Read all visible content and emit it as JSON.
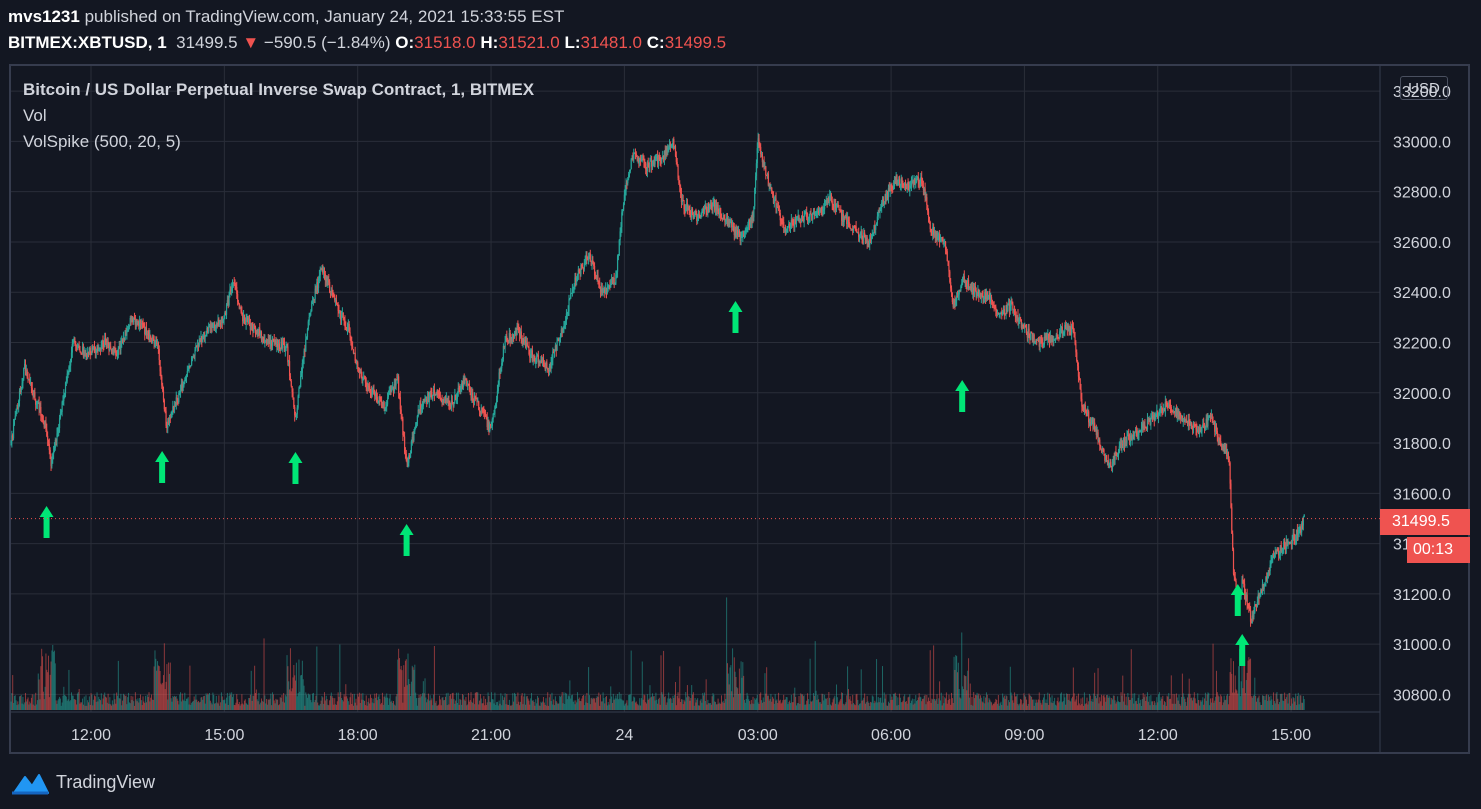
{
  "header": {
    "author": "mvs1231",
    "published_text": "published on TradingView.com, January 24, 2021 15:33:55 EST",
    "symbol": "BITMEX:XBTUSD, 1",
    "last": "31499.5",
    "change": "−590.5 (−1.84%)",
    "open_label": "O:",
    "open": "31518.0",
    "high_label": "H:",
    "high": "31521.0",
    "low_label": "L:",
    "low": "31481.0",
    "close_label": "C:",
    "close": "31499.5"
  },
  "legend": {
    "title": "Bitcoin / US Dollar Perpetual Inverse Swap Contract, 1, BITMEX",
    "vol": "Vol",
    "volspike": "VolSpike (500, 20, 5)"
  },
  "currency": "USD",
  "price_badge": "31499.5",
  "timer_badge": "00:13",
  "brand": "TradingView",
  "colors": {
    "background": "#131722",
    "up": "#26a69a",
    "down": "#ef5350",
    "arrow": "#00e676",
    "grid": "#2a2e39"
  },
  "chart_data": {
    "type": "candlestick",
    "y_ticks": [
      30800,
      31000,
      31200,
      31400,
      31600,
      31800,
      32000,
      32200,
      32400,
      32600,
      32800,
      33000,
      33200
    ],
    "y_tick_labels": [
      "30800.0",
      "31000.0",
      "31200.0",
      "31400.0",
      "31600.0",
      "31800.0",
      "32000.0",
      "32200.0",
      "32400.0",
      "32600.0",
      "32800.0",
      "33000.0",
      "33200.0"
    ],
    "x_tick_labels": [
      "12:00",
      "15:00",
      "18:00",
      "21:00",
      "24",
      "03:00",
      "06:00",
      "09:00",
      "12:00",
      "15:00"
    ],
    "x_tick_hours": [
      12,
      15,
      18,
      21,
      24,
      27,
      30,
      33,
      36,
      39
    ],
    "x_range_hours": [
      10.2,
      41.0
    ],
    "ylim": [
      30730,
      33300
    ],
    "last_price": 31499.5,
    "grid": true,
    "close_path": [
      [
        10.2,
        31800
      ],
      [
        10.5,
        32100
      ],
      [
        10.8,
        31950
      ],
      [
        11.0,
        31850
      ],
      [
        11.1,
        31720
      ],
      [
        11.3,
        31900
      ],
      [
        11.6,
        32200
      ],
      [
        11.9,
        32150
      ],
      [
        12.3,
        32200
      ],
      [
        12.6,
        32150
      ],
      [
        12.9,
        32300
      ],
      [
        13.2,
        32250
      ],
      [
        13.5,
        32180
      ],
      [
        13.7,
        31870
      ],
      [
        14.0,
        32000
      ],
      [
        14.3,
        32150
      ],
      [
        14.6,
        32250
      ],
      [
        15.0,
        32300
      ],
      [
        15.2,
        32450
      ],
      [
        15.4,
        32300
      ],
      [
        15.7,
        32250
      ],
      [
        16.0,
        32200
      ],
      [
        16.4,
        32180
      ],
      [
        16.6,
        31900
      ],
      [
        16.9,
        32300
      ],
      [
        17.2,
        32500
      ],
      [
        17.5,
        32350
      ],
      [
        17.8,
        32250
      ],
      [
        18.0,
        32100
      ],
      [
        18.3,
        32000
      ],
      [
        18.6,
        31950
      ],
      [
        18.9,
        32050
      ],
      [
        19.1,
        31700
      ],
      [
        19.4,
        31950
      ],
      [
        19.7,
        32000
      ],
      [
        20.1,
        31950
      ],
      [
        20.4,
        32050
      ],
      [
        20.7,
        31950
      ],
      [
        21.0,
        31850
      ],
      [
        21.3,
        32200
      ],
      [
        21.6,
        32250
      ],
      [
        21.9,
        32150
      ],
      [
        22.3,
        32100
      ],
      [
        22.6,
        32250
      ],
      [
        22.9,
        32450
      ],
      [
        23.2,
        32550
      ],
      [
        23.5,
        32400
      ],
      [
        23.8,
        32450
      ],
      [
        24.0,
        32800
      ],
      [
        24.2,
        32950
      ],
      [
        24.5,
        32900
      ],
      [
        24.9,
        32950
      ],
      [
        25.1,
        33000
      ],
      [
        25.3,
        32750
      ],
      [
        25.6,
        32700
      ],
      [
        26.0,
        32750
      ],
      [
        26.3,
        32680
      ],
      [
        26.6,
        32620
      ],
      [
        26.9,
        32700
      ],
      [
        27.0,
        33000
      ],
      [
        27.3,
        32800
      ],
      [
        27.6,
        32650
      ],
      [
        28.0,
        32700
      ],
      [
        28.3,
        32700
      ],
      [
        28.6,
        32780
      ],
      [
        28.9,
        32700
      ],
      [
        29.2,
        32650
      ],
      [
        29.5,
        32600
      ],
      [
        29.8,
        32750
      ],
      [
        30.1,
        32850
      ],
      [
        30.4,
        32820
      ],
      [
        30.7,
        32850
      ],
      [
        30.9,
        32650
      ],
      [
        31.2,
        32600
      ],
      [
        31.4,
        32350
      ],
      [
        31.6,
        32450
      ],
      [
        31.9,
        32400
      ],
      [
        32.2,
        32380
      ],
      [
        32.4,
        32300
      ],
      [
        32.7,
        32350
      ],
      [
        33.0,
        32250
      ],
      [
        33.3,
        32200
      ],
      [
        33.6,
        32220
      ],
      [
        33.9,
        32250
      ],
      [
        34.1,
        32250
      ],
      [
        34.3,
        31950
      ],
      [
        34.6,
        31850
      ],
      [
        34.9,
        31700
      ],
      [
        35.2,
        31800
      ],
      [
        35.6,
        31850
      ],
      [
        35.9,
        31900
      ],
      [
        36.2,
        31950
      ],
      [
        36.6,
        31900
      ],
      [
        36.9,
        31850
      ],
      [
        37.2,
        31900
      ],
      [
        37.4,
        31800
      ],
      [
        37.6,
        31750
      ],
      [
        37.7,
        31300
      ],
      [
        37.8,
        31150
      ],
      [
        37.9,
        31250
      ],
      [
        38.1,
        31100
      ],
      [
        38.3,
        31200
      ],
      [
        38.6,
        31350
      ],
      [
        38.9,
        31400
      ],
      [
        39.2,
        31450
      ],
      [
        39.3,
        31499.5
      ]
    ],
    "volspike_arrows_hours": [
      11.0,
      13.6,
      16.6,
      19.1,
      26.5,
      31.6,
      37.8,
      37.9
    ]
  }
}
